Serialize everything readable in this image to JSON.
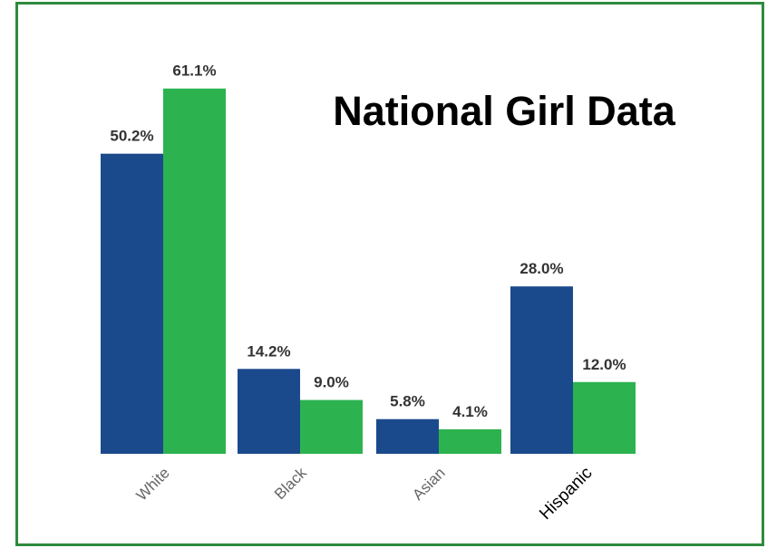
{
  "chart_data": {
    "type": "bar",
    "title": "National Girl Data",
    "categories": [
      "White",
      "Black",
      "Asian",
      "Hispanic"
    ],
    "series": [
      {
        "color": "#1b4a8c",
        "values": [
          50.2,
          14.2,
          5.8,
          28.0
        ],
        "value_labels": [
          "50.2%",
          "14.2%",
          "5.8%",
          "28.0%"
        ]
      },
      {
        "color": "#2cb34f",
        "values": [
          61.1,
          9.0,
          4.1,
          12.0
        ],
        "value_labels": [
          "61.1%",
          "9.0%",
          "4.1%",
          "12.0%"
        ]
      }
    ]
  }
}
